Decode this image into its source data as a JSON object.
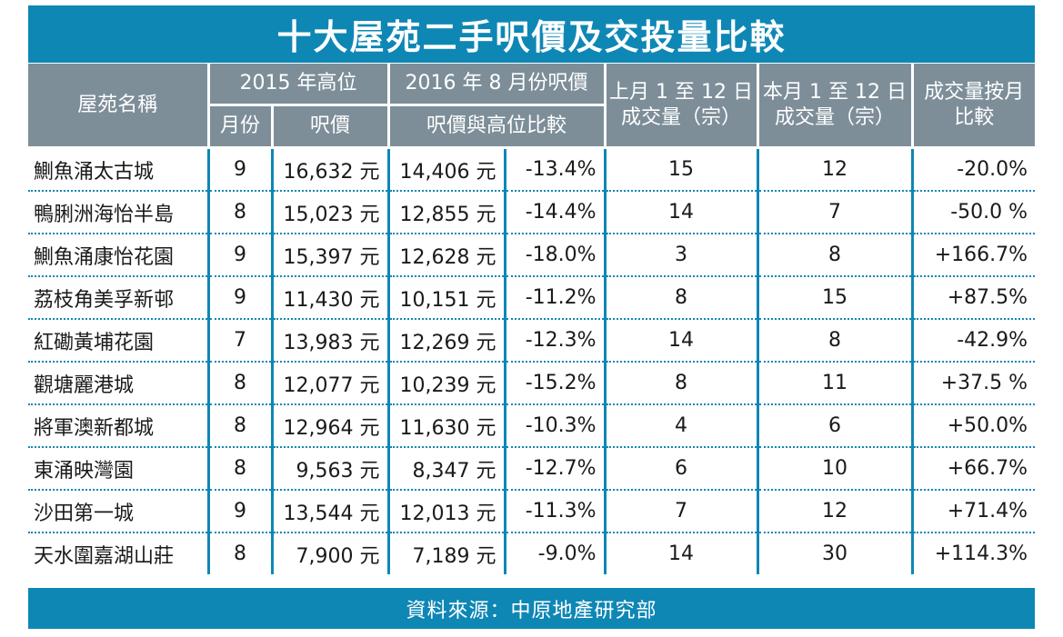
{
  "title": "十大屋苑二手呎價及交投量比較",
  "headers": {
    "name": "屋苑名稱",
    "high_2015": "2015 年高位",
    "aug_2016": "2016 年 8 月份呎價",
    "last_month": "上月 1 至 12 日成交量（宗）",
    "this_month": "本月 1 至 12 日成交量（宗）",
    "mom": "成交量按月比較",
    "month": "月份",
    "price": "呎價",
    "vs_high": "呎價與高位比較"
  },
  "rows": [
    {
      "name": "鰂魚涌太古城",
      "month": "9",
      "high": "16,632 元",
      "price": "14,406 元",
      "diff": "-13.4%",
      "last": "15",
      "this": "12",
      "mom": "-20.0%"
    },
    {
      "name": "鴨脷洲海怡半島",
      "month": "8",
      "high": "15,023 元",
      "price": "12,855 元",
      "diff": "-14.4%",
      "last": "14",
      "this": "7",
      "mom": "-50.0 %"
    },
    {
      "name": "鰂魚涌康怡花園",
      "month": "9",
      "high": "15,397 元",
      "price": "12,628 元",
      "diff": "-18.0%",
      "last": "3",
      "this": "8",
      "mom": "+166.7%"
    },
    {
      "name": "荔枝角美孚新邨",
      "month": "9",
      "high": "11,430 元",
      "price": "10,151 元",
      "diff": "-11.2%",
      "last": "8",
      "this": "15",
      "mom": "+87.5%"
    },
    {
      "name": "紅磡黃埔花園",
      "month": "7",
      "high": "13,983 元",
      "price": "12,269 元",
      "diff": "-12.3%",
      "last": "14",
      "this": "8",
      "mom": "-42.9%"
    },
    {
      "name": "觀塘麗港城",
      "month": "8",
      "high": "12,077 元",
      "price": "10,239 元",
      "diff": "-15.2%",
      "last": "8",
      "this": "11",
      "mom": "+37.5 %"
    },
    {
      "name": "將軍澳新都城",
      "month": "8",
      "high": "12,964 元",
      "price": "11,630 元",
      "diff": "-10.3%",
      "last": "4",
      "this": "6",
      "mom": "+50.0%"
    },
    {
      "name": "東涌映灣園",
      "month": "8",
      "high": "9,563 元",
      "price": "8,347 元",
      "diff": "-12.7%",
      "last": "6",
      "this": "10",
      "mom": "+66.7%"
    },
    {
      "name": "沙田第一城",
      "month": "9",
      "high": "13,544 元",
      "price": "12,013 元",
      "diff": "-11.3%",
      "last": "7",
      "this": "12",
      "mom": "+71.4%"
    },
    {
      "name": "天水圍嘉湖山莊",
      "month": "8",
      "high": "7,900 元",
      "price": "7,189 元",
      "diff": "-9.0%",
      "last": "14",
      "this": "30",
      "mom": "+114.3%"
    }
  ],
  "source": "資料來源：中原地產研究部"
}
